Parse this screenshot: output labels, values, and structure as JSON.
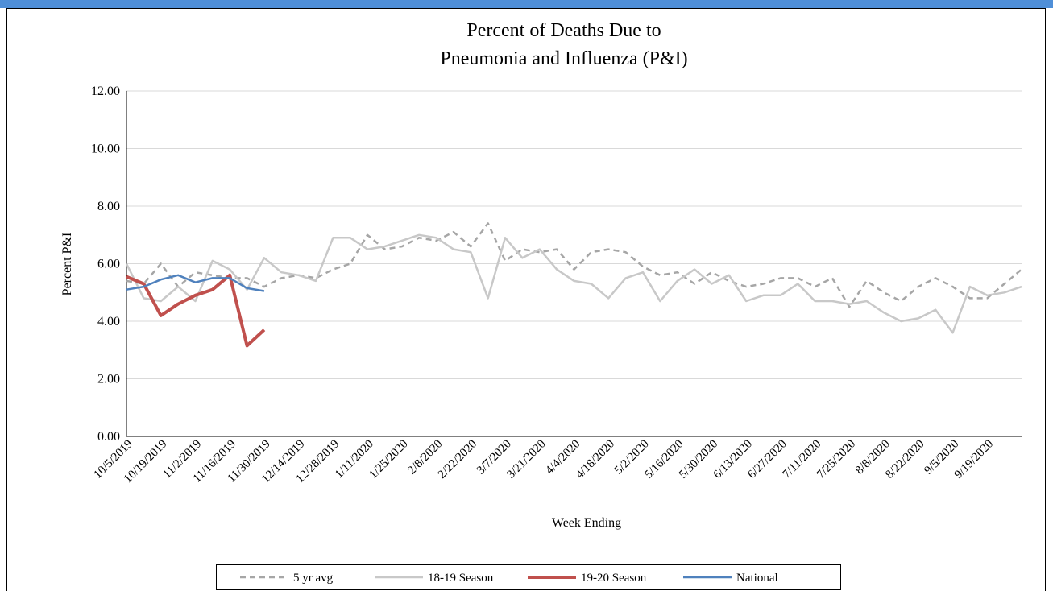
{
  "chart_data": {
    "type": "line",
    "title": [
      "Percent of Deaths Due to",
      "Pneumonia and Influenza (P&I)"
    ],
    "x_label": "Week Ending",
    "y_label": "Percent P&I",
    "categories": [
      "10/5/2019",
      null,
      "10/19/2019",
      null,
      "11/2/2019",
      null,
      "11/16/2019",
      null,
      "11/30/2019",
      null,
      "12/14/2019",
      null,
      "12/28/2019",
      null,
      "1/11/2020",
      null,
      "1/25/2020",
      null,
      "2/8/2020",
      null,
      "2/22/2020",
      null,
      "3/7/2020",
      null,
      "3/21/2020",
      null,
      "4/4/2020",
      null,
      "4/18/2020",
      null,
      "5/2/2020",
      null,
      "5/16/2020",
      null,
      "5/30/2020",
      null,
      "6/13/2020",
      null,
      "6/27/2020",
      null,
      "7/11/2020",
      null,
      "7/25/2020",
      null,
      "8/8/2020",
      null,
      "8/22/2020",
      null,
      "9/5/2020",
      null,
      "9/19/2020",
      null,
      null
    ],
    "ylim": [
      0,
      12
    ],
    "yticks": [
      {
        "value": 0,
        "label": "0.00"
      },
      {
        "value": 2,
        "label": "2.00"
      },
      {
        "value": 4,
        "label": "4.00"
      },
      {
        "value": 6,
        "label": "6.00"
      },
      {
        "value": 8,
        "label": "8.00"
      },
      {
        "value": 10,
        "label": "10.00"
      },
      {
        "value": 12,
        "label": "12.00"
      }
    ],
    "grid": true,
    "legend": "bottom",
    "series": [
      {
        "name": "5 yr avg",
        "color": "#a6a6a6",
        "dashed": true,
        "width": 2.5,
        "values": [
          5.4,
          5.3,
          6.0,
          5.2,
          5.7,
          5.6,
          5.5,
          5.5,
          5.2,
          5.5,
          5.6,
          5.5,
          5.8,
          6.0,
          7.0,
          6.5,
          6.6,
          6.9,
          6.8,
          7.1,
          6.6,
          7.4,
          6.1,
          6.5,
          6.4,
          6.5,
          5.8,
          6.4,
          6.5,
          6.4,
          5.9,
          5.6,
          5.7,
          5.3,
          5.7,
          5.4,
          5.2,
          5.3,
          5.5,
          5.5,
          5.2,
          5.5,
          4.5,
          5.4,
          5.0,
          4.7,
          5.2,
          5.5,
          5.2,
          4.8,
          4.8,
          5.3,
          5.8
        ]
      },
      {
        "name": "18-19 Season",
        "color": "#c8c8c8",
        "dashed": false,
        "width": 2.5,
        "values": [
          6.0,
          4.8,
          4.7,
          5.2,
          4.7,
          6.1,
          5.8,
          5.1,
          6.2,
          5.7,
          5.6,
          5.4,
          6.9,
          6.9,
          6.5,
          6.6,
          6.8,
          7.0,
          6.9,
          6.5,
          6.4,
          4.8,
          6.9,
          6.2,
          6.5,
          5.8,
          5.4,
          5.3,
          4.8,
          5.5,
          5.7,
          4.7,
          5.4,
          5.8,
          5.3,
          5.6,
          4.7,
          4.9,
          4.9,
          5.3,
          4.7,
          4.7,
          4.6,
          4.7,
          4.3,
          4.0,
          4.1,
          4.4,
          3.6,
          5.2,
          4.9,
          5.0,
          5.2
        ]
      },
      {
        "name": "19-20 Season",
        "color": "#c0504d",
        "dashed": false,
        "width": 4,
        "values": [
          5.55,
          5.3,
          4.2,
          4.6,
          4.9,
          5.1,
          5.6,
          3.15,
          3.7,
          null,
          null,
          null,
          null,
          null,
          null,
          null,
          null,
          null,
          null,
          null,
          null,
          null,
          null,
          null,
          null,
          null,
          null,
          null,
          null,
          null,
          null,
          null,
          null,
          null,
          null,
          null,
          null,
          null,
          null,
          null,
          null,
          null,
          null,
          null,
          null,
          null,
          null,
          null,
          null,
          null,
          null,
          null,
          null
        ]
      },
      {
        "name": "National",
        "color": "#4f81bd",
        "dashed": false,
        "width": 2.5,
        "values": [
          5.1,
          5.2,
          5.45,
          5.6,
          5.35,
          5.5,
          5.5,
          5.15,
          5.05,
          null,
          null,
          null,
          null,
          null,
          null,
          null,
          null,
          null,
          null,
          null,
          null,
          null,
          null,
          null,
          null,
          null,
          null,
          null,
          null,
          null,
          null,
          null,
          null,
          null,
          null,
          null,
          null,
          null,
          null,
          null,
          null,
          null,
          null,
          null,
          null,
          null,
          null,
          null,
          null,
          null,
          null,
          null,
          null
        ]
      }
    ]
  }
}
